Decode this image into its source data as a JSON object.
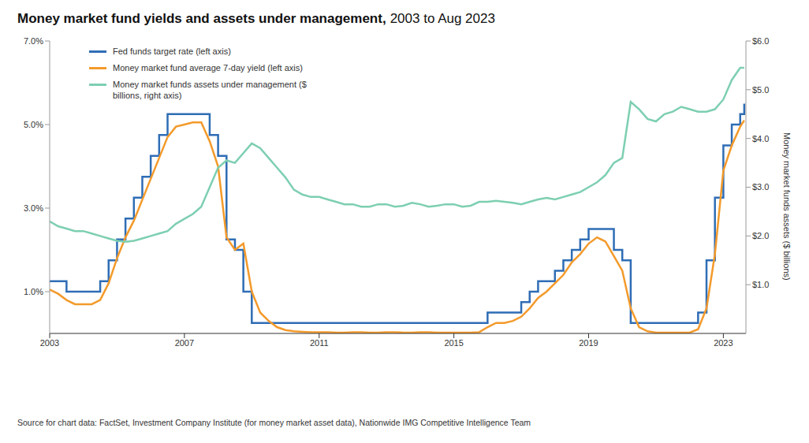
{
  "chart_data": {
    "type": "line",
    "title": "Money market fund yields and assets under management,",
    "subtitle": "2003 to Aug 2023",
    "source": "Source for chart data: FactSet, Investment Company Institute (for money market asset data), Nationwide IMG Competitive Intelligence Team",
    "y2_label": "Money market funds assets ($ billions)",
    "legend": "top-left",
    "grid": false,
    "x": [
      2003,
      2003.25,
      2003.5,
      2003.75,
      2004,
      2004.25,
      2004.5,
      2004.75,
      2005,
      2005.25,
      2005.5,
      2005.75,
      2006,
      2006.25,
      2006.5,
      2006.75,
      2007,
      2007.25,
      2007.5,
      2007.75,
      2008,
      2008.25,
      2008.5,
      2008.75,
      2009,
      2009.25,
      2009.5,
      2009.75,
      2010,
      2010.25,
      2010.5,
      2010.75,
      2011,
      2011.25,
      2011.5,
      2011.75,
      2012,
      2012.25,
      2012.5,
      2012.75,
      2013,
      2013.25,
      2013.5,
      2013.75,
      2014,
      2014.25,
      2014.5,
      2014.75,
      2015,
      2015.25,
      2015.5,
      2015.75,
      2016,
      2016.25,
      2016.5,
      2016.75,
      2017,
      2017.25,
      2017.5,
      2017.75,
      2018,
      2018.25,
      2018.5,
      2018.75,
      2019,
      2019.25,
      2019.5,
      2019.75,
      2020,
      2020.25,
      2020.5,
      2020.75,
      2021,
      2021.25,
      2021.5,
      2021.75,
      2022,
      2022.25,
      2022.5,
      2022.75,
      2023,
      2023.25,
      2023.5,
      2023.62
    ],
    "xlim": [
      2003,
      2023.67
    ],
    "xticks": [
      2003,
      2007,
      2011,
      2015,
      2019,
      2023
    ],
    "ylim": [
      0,
      7
    ],
    "yticks": [
      {
        "value": 1,
        "label": "1.0%"
      },
      {
        "value": 3,
        "label": "3.0%"
      },
      {
        "value": 5,
        "label": "5.0%"
      },
      {
        "value": 7,
        "label": "7.0%"
      }
    ],
    "y2lim": [
      0,
      6
    ],
    "y2ticks": [
      {
        "value": 1,
        "label": "$1.0"
      },
      {
        "value": 2,
        "label": "$2.0"
      },
      {
        "value": 3,
        "label": "$3.0"
      },
      {
        "value": 4,
        "label": "$4.0"
      },
      {
        "value": 5,
        "label": "$5.0"
      },
      {
        "value": 6,
        "label": "$6.0"
      }
    ],
    "series": [
      {
        "name": "Fed funds target rate (left axis)",
        "color": "#2f6db5",
        "line_style": "step",
        "axis": "y",
        "values": [
          1.25,
          1.25,
          1,
          1,
          1,
          1,
          1.25,
          1.75,
          2.25,
          2.75,
          3.25,
          3.75,
          4.25,
          4.75,
          5.25,
          5.25,
          5.25,
          5.25,
          5.25,
          4.75,
          4.25,
          2.25,
          2,
          1,
          0.25,
          0.25,
          0.25,
          0.25,
          0.25,
          0.25,
          0.25,
          0.25,
          0.25,
          0.25,
          0.25,
          0.25,
          0.25,
          0.25,
          0.25,
          0.25,
          0.25,
          0.25,
          0.25,
          0.25,
          0.25,
          0.25,
          0.25,
          0.25,
          0.25,
          0.25,
          0.25,
          0.25,
          0.5,
          0.5,
          0.5,
          0.5,
          0.75,
          1,
          1.25,
          1.25,
          1.5,
          1.75,
          2,
          2.25,
          2.5,
          2.5,
          2.5,
          2,
          1.75,
          0.25,
          0.25,
          0.25,
          0.25,
          0.25,
          0.25,
          0.25,
          0.25,
          0.5,
          1.75,
          3.25,
          4.5,
          5,
          5.25,
          5.5
        ]
      },
      {
        "name": "Money market fund average 7-day yield (left axis)",
        "color": "#f39a2b",
        "line_style": "solid",
        "axis": "y",
        "values": [
          1.05,
          0.95,
          0.8,
          0.7,
          0.7,
          0.7,
          0.8,
          1.2,
          1.8,
          2.3,
          2.7,
          3.2,
          3.7,
          4.2,
          4.7,
          4.95,
          5,
          5.05,
          5.05,
          4.6,
          4,
          2.3,
          2,
          2.15,
          1,
          0.5,
          0.3,
          0.15,
          0.08,
          0.05,
          0.04,
          0.03,
          0.03,
          0.03,
          0.02,
          0.02,
          0.03,
          0.03,
          0.02,
          0.02,
          0.03,
          0.03,
          0.02,
          0.02,
          0.03,
          0.03,
          0.02,
          0.02,
          0.02,
          0.02,
          0.02,
          0.03,
          0.15,
          0.25,
          0.25,
          0.3,
          0.4,
          0.6,
          0.85,
          1,
          1.2,
          1.4,
          1.7,
          1.9,
          2.15,
          2.3,
          2.2,
          1.85,
          1.5,
          0.6,
          0.15,
          0.05,
          0.02,
          0.02,
          0.02,
          0.02,
          0.02,
          0.1,
          0.6,
          1.9,
          3.9,
          4.5,
          4.95,
          5.1
        ]
      },
      {
        "name": "Money market funds assets under management ($ billions, right axis)",
        "color": "#7dcfb1",
        "line_style": "solid",
        "axis": "y2",
        "values": [
          2.3,
          2.2,
          2.15,
          2.1,
          2.1,
          2.05,
          2,
          1.95,
          1.9,
          1.88,
          1.9,
          1.95,
          2,
          2.05,
          2.1,
          2.25,
          2.35,
          2.45,
          2.6,
          3,
          3.4,
          3.55,
          3.5,
          3.7,
          3.9,
          3.8,
          3.6,
          3.4,
          3.2,
          2.95,
          2.85,
          2.8,
          2.8,
          2.75,
          2.7,
          2.65,
          2.65,
          2.6,
          2.6,
          2.65,
          2.65,
          2.6,
          2.62,
          2.68,
          2.65,
          2.6,
          2.62,
          2.65,
          2.65,
          2.6,
          2.62,
          2.7,
          2.7,
          2.72,
          2.7,
          2.68,
          2.65,
          2.7,
          2.75,
          2.78,
          2.75,
          2.8,
          2.85,
          2.9,
          3,
          3.1,
          3.25,
          3.5,
          3.6,
          4.75,
          4.6,
          4.4,
          4.35,
          4.5,
          4.55,
          4.65,
          4.6,
          4.55,
          4.55,
          4.6,
          4.8,
          5.2,
          5.45,
          5.45
        ]
      }
    ]
  }
}
